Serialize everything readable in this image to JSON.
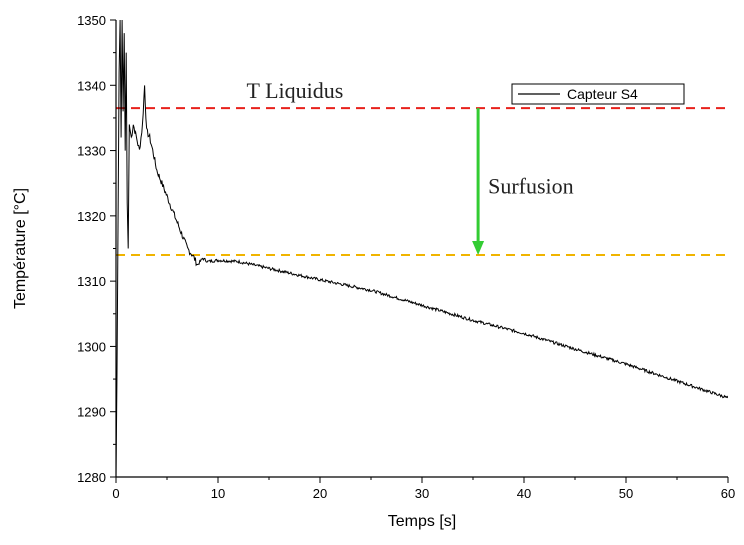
{
  "chart_data": {
    "type": "line",
    "xlabel": "Temps [s]",
    "ylabel": "Température [°C]",
    "xlim": [
      0,
      60
    ],
    "ylim": [
      1280,
      1350
    ],
    "x_ticks": [
      0,
      10,
      20,
      30,
      40,
      50,
      60
    ],
    "y_ticks": [
      1280,
      1290,
      1300,
      1310,
      1320,
      1330,
      1340,
      1350
    ],
    "grid": false,
    "legend_position": "top-right",
    "series": [
      {
        "name": "Capteur S4",
        "color": "#000000",
        "points": [
          [
            0.0,
            1280
          ],
          [
            0.1,
            1296
          ],
          [
            0.2,
            1318
          ],
          [
            0.3,
            1342
          ],
          [
            0.4,
            1350
          ],
          [
            0.5,
            1332
          ],
          [
            0.6,
            1350
          ],
          [
            0.7,
            1336
          ],
          [
            0.8,
            1348
          ],
          [
            0.9,
            1330
          ],
          [
            1.0,
            1345
          ],
          [
            1.1,
            1322
          ],
          [
            1.2,
            1315
          ],
          [
            1.3,
            1334
          ],
          [
            1.5,
            1332
          ],
          [
            1.7,
            1334
          ],
          [
            2.0,
            1332
          ],
          [
            2.3,
            1330
          ],
          [
            2.6,
            1334
          ],
          [
            2.8,
            1340
          ],
          [
            3.0,
            1333
          ],
          [
            3.3,
            1332
          ],
          [
            3.6,
            1330
          ],
          [
            4.0,
            1327
          ],
          [
            4.5,
            1325
          ],
          [
            5.0,
            1323
          ],
          [
            5.5,
            1321
          ],
          [
            6.0,
            1319
          ],
          [
            6.5,
            1317
          ],
          [
            7.0,
            1315
          ],
          [
            7.5,
            1314
          ],
          [
            8.0,
            1312.5
          ],
          [
            8.5,
            1313.5
          ],
          [
            9.0,
            1313
          ],
          [
            10.0,
            1313.2
          ],
          [
            12.0,
            1313
          ],
          [
            14.0,
            1312.3
          ],
          [
            16.0,
            1311.6
          ],
          [
            20.0,
            1310.2
          ],
          [
            25.0,
            1308.6
          ],
          [
            30.0,
            1306.3
          ],
          [
            35.0,
            1304.0
          ],
          [
            40.0,
            1302.0
          ],
          [
            45.0,
            1299.6
          ],
          [
            50.0,
            1297.3
          ],
          [
            55.0,
            1294.7
          ],
          [
            60.0,
            1292.1
          ]
        ]
      }
    ],
    "reference_lines": [
      {
        "label": "T  Liquidus",
        "y": 1336.5,
        "color": "#e8211b"
      },
      {
        "label": "",
        "y": 1314,
        "color": "#f0b400"
      }
    ],
    "annotation": {
      "label": "Surfusion",
      "x": 35.5,
      "y_from": 1336.5,
      "y_to": 1314,
      "arrow_color": "#33cc33"
    }
  }
}
